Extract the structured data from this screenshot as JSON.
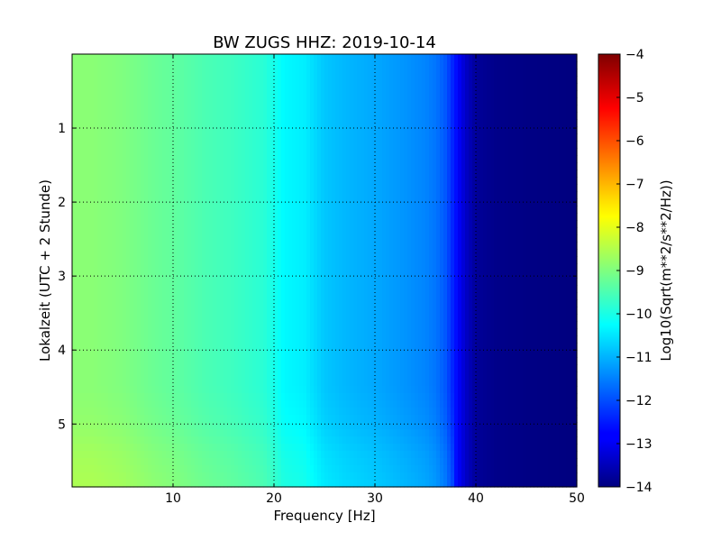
{
  "chart_data": {
    "type": "heatmap",
    "title": "BW ZUGS HHZ: 2019-10-14",
    "xlabel": "Frequency [Hz]",
    "ylabel": "Lokalzeit (UTC + 2 Stunde)",
    "colorbar_label": "Log10(Sqrt(m**2/s**2/Hz))",
    "xlim": [
      0,
      50
    ],
    "ylim": [
      5.85,
      0
    ],
    "y_inverted": true,
    "x_ticks": [
      10,
      20,
      30,
      40,
      50
    ],
    "x_tick_labels": [
      "10",
      "20",
      "30",
      "40",
      "50"
    ],
    "y_ticks": [
      1,
      2,
      3,
      4,
      5
    ],
    "y_tick_labels": [
      "1",
      "2",
      "3",
      "4",
      "5"
    ],
    "color_range": [
      -14,
      -4
    ],
    "colorbar_ticks": [
      -4,
      -5,
      -6,
      -7,
      -8,
      -9,
      -10,
      -11,
      -12,
      -13,
      -14
    ],
    "colorbar_tick_labels": [
      "−4",
      "−5",
      "−6",
      "−7",
      "−8",
      "−9",
      "−10",
      "−11",
      "−12",
      "−13",
      "−14"
    ],
    "colormap": "jet",
    "grid": true,
    "grid_style": "dotted",
    "frequency_profile": {
      "frequency": [
        0,
        2,
        5,
        8,
        10,
        13,
        16,
        19,
        20,
        21,
        23,
        24,
        25,
        27,
        30,
        33,
        35,
        36,
        37,
        38,
        39,
        40,
        42,
        45,
        50
      ],
      "log10_amplitude": [
        -8.9,
        -8.9,
        -9.0,
        -9.2,
        -9.3,
        -9.5,
        -9.65,
        -9.85,
        -10.05,
        -10.3,
        -10.4,
        -10.6,
        -10.8,
        -10.95,
        -11.1,
        -11.3,
        -11.45,
        -11.6,
        -11.9,
        -12.6,
        -13.3,
        -13.75,
        -13.9,
        -13.95,
        -14.0
      ]
    },
    "late_hours_offset": {
      "time": [
        0,
        4.5,
        5.0,
        5.4,
        5.85
      ],
      "log10_offset": [
        0,
        0,
        0.1,
        0.25,
        0.35
      ]
    }
  }
}
